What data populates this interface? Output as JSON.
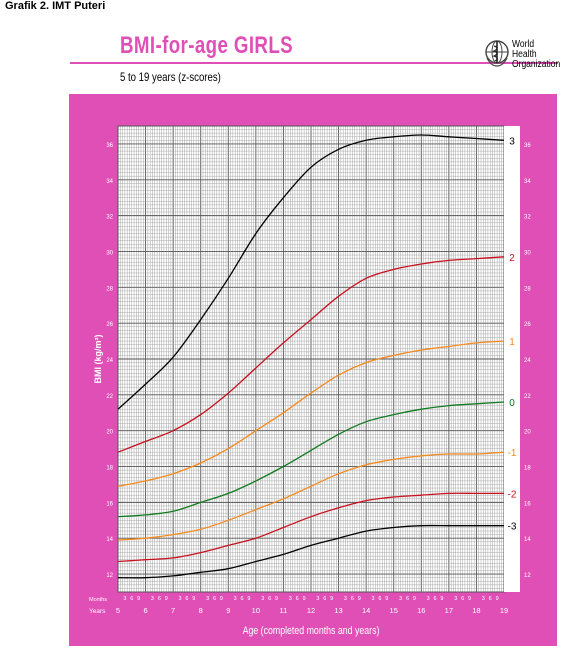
{
  "caption": "Grafik 2. IMT Puteri",
  "header": {
    "title": "BMI-for-age  GIRLS",
    "subtitle": "5 to 19 years (z-scores)",
    "org_line1": "World Health",
    "org_line2": "Organization"
  },
  "colors": {
    "frame": "#e04fb6",
    "title": "#e04fb6",
    "grid_minor": "#9a9a9a",
    "grid_major": "#555555",
    "z3": "#000000",
    "z2": "#c8101e",
    "z1": "#f58a1f",
    "z0": "#0f7a1e"
  },
  "chart_data": {
    "type": "line",
    "title": "BMI-for-age  GIRLS",
    "subtitle": "5 to 19 years (z-scores)",
    "ylabel": "BMI (kg/m²)",
    "xlabel": "Age (completed months and years)",
    "x_row_label_months": "Months",
    "x_row_label_years": "Years",
    "xlim": [
      5,
      19
    ],
    "ylim": [
      11,
      37
    ],
    "grid": true,
    "y_ticks": [
      "12",
      "14",
      "16",
      "18",
      "20",
      "22",
      "24",
      "26",
      "28",
      "30",
      "32",
      "34",
      "36"
    ],
    "x_ticks_years": [
      "5",
      "6",
      "7",
      "8",
      "9",
      "10",
      "11",
      "12",
      "13",
      "14",
      "15",
      "16",
      "17",
      "18",
      "19"
    ],
    "month_tick_labels": [
      "3",
      "6",
      "9"
    ],
    "x": [
      5,
      6,
      7,
      8,
      9,
      10,
      11,
      12,
      13,
      14,
      15,
      16,
      17,
      18,
      19
    ],
    "series": [
      {
        "name": "3",
        "color_key": "z3",
        "values": [
          21.2,
          22.6,
          24.1,
          26.2,
          28.5,
          31.0,
          33.0,
          34.7,
          35.7,
          36.2,
          36.4,
          36.5,
          36.4,
          36.3,
          36.2
        ]
      },
      {
        "name": "2",
        "color_key": "z2",
        "values": [
          18.8,
          19.4,
          20.0,
          20.9,
          22.1,
          23.5,
          24.9,
          26.2,
          27.5,
          28.5,
          29.0,
          29.3,
          29.5,
          29.6,
          29.7
        ]
      },
      {
        "name": "1",
        "color_key": "z1",
        "values": [
          16.9,
          17.2,
          17.6,
          18.2,
          19.0,
          20.0,
          21.0,
          22.1,
          23.1,
          23.8,
          24.2,
          24.5,
          24.7,
          24.9,
          25.0
        ]
      },
      {
        "name": "0",
        "color_key": "z0",
        "values": [
          15.2,
          15.3,
          15.5,
          16.0,
          16.5,
          17.2,
          18.0,
          18.9,
          19.8,
          20.5,
          20.9,
          21.2,
          21.4,
          21.5,
          21.6
        ]
      },
      {
        "name": "-1",
        "color_key": "z1",
        "values": [
          13.9,
          14.0,
          14.2,
          14.5,
          15.0,
          15.6,
          16.2,
          16.9,
          17.6,
          18.1,
          18.4,
          18.6,
          18.7,
          18.7,
          18.8
        ]
      },
      {
        "name": "-2",
        "color_key": "z2",
        "values": [
          12.7,
          12.8,
          12.9,
          13.2,
          13.6,
          14.0,
          14.6,
          15.2,
          15.7,
          16.1,
          16.3,
          16.4,
          16.5,
          16.5,
          16.5
        ]
      },
      {
        "name": "-3",
        "color_key": "z3",
        "values": [
          11.8,
          11.8,
          11.9,
          12.1,
          12.3,
          12.7,
          13.1,
          13.6,
          14.0,
          14.4,
          14.6,
          14.7,
          14.7,
          14.7,
          14.7
        ]
      }
    ]
  }
}
